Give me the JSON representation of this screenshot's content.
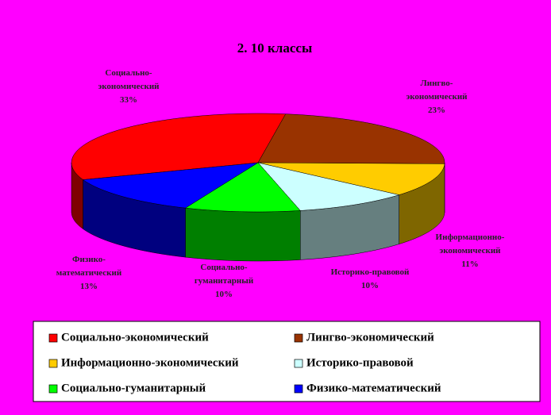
{
  "chart_data": {
    "type": "pie3d",
    "title": "2. 10 классы",
    "categories": [
      "Социально-экономический",
      "Лингво-экономический",
      "Информационно-экономический",
      "Историко-правовой",
      "Социально-гуманитарный",
      "Физико-математический"
    ],
    "values": [
      33,
      23,
      11,
      10,
      10,
      13
    ],
    "value_labels": [
      "33%",
      "23%",
      "11%",
      "10%",
      "10%",
      "13%"
    ],
    "colors": [
      "#ff0000",
      "#993300",
      "#ffcc00",
      "#ccffff",
      "#00ff00",
      "#0000ff"
    ],
    "legend": "bottom"
  }
}
